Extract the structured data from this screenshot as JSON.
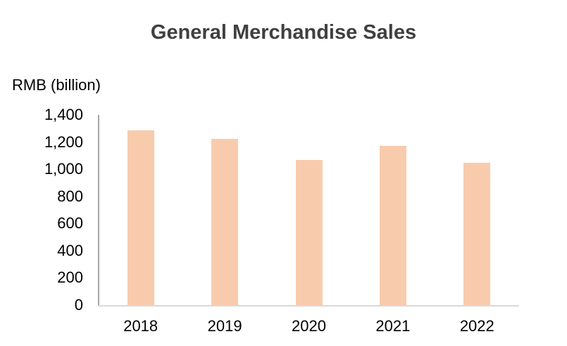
{
  "page": {
    "title": "General Merchandise Sales",
    "y_axis_unit_label": "RMB (billion)"
  },
  "chart_data": {
    "type": "bar",
    "title": "General Merchandise Sales",
    "xlabel": "",
    "ylabel": "RMB (billion)",
    "categories": [
      "2018",
      "2019",
      "2020",
      "2021",
      "2022"
    ],
    "values": [
      1285,
      1225,
      1070,
      1170,
      1050
    ],
    "ylim": [
      0,
      1400
    ],
    "ytick_interval": 200,
    "ytick_labels": [
      "0",
      "200",
      "400",
      "600",
      "800",
      "1,000",
      "1,200",
      "1,400"
    ],
    "grid": false,
    "legend": false,
    "bar_color": "#F8CBAD",
    "colors": {
      "title_text": "#404040",
      "axis_text": "#000000",
      "y_axis_line": "#A6A6A6",
      "x_axis_line": "#D9D9D9",
      "background": "#FFFFFF"
    }
  }
}
